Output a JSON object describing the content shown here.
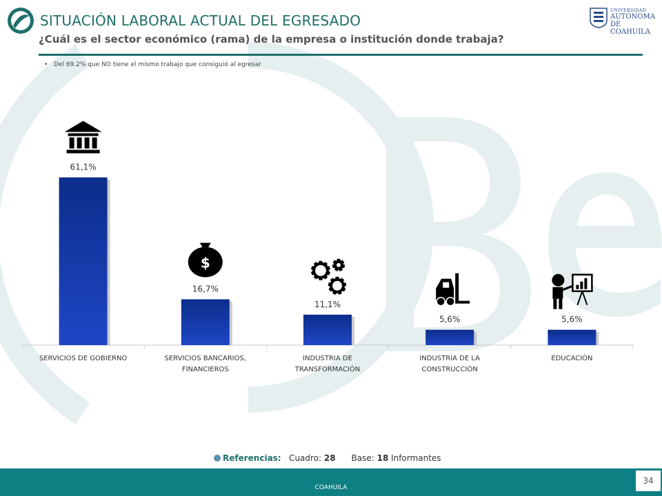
{
  "header": {
    "title": "SITUACIÓN LABORAL ACTUAL DEL EGRESADO",
    "subtitle": "¿Cuál es el sector económico (rama) de la empresa o institución donde trabaja?",
    "university": {
      "line1": "UNIVERSIDAD",
      "line2": "AUTÓNOMA",
      "line3": "DE COAHUILA"
    }
  },
  "note": {
    "bullet": "•",
    "text": "Del 69.2% que NO tiene el mismo trabajo que consiguió al egresar"
  },
  "chart_data": {
    "type": "bar",
    "categories": [
      "SERVICIOS DE GOBIERNO",
      "SERVICIOS BANCARIOS, FINANCIEROS",
      "INDUSTRIA DE TRANSFORMACIÓN",
      "INDUSTRIA DE LA CONSTRUCCIÓN",
      "EDUCACIÓN"
    ],
    "category_lines": [
      [
        "SERVICIOS DE GOBIERNO"
      ],
      [
        "SERVICIOS BANCARIOS,",
        "FINANCIEROS"
      ],
      [
        "INDUSTRIA DE",
        "TRANSFORMACIÓN"
      ],
      [
        "INDUSTRIA DE LA",
        "CONSTRUCCIÓN"
      ],
      [
        "EDUCACIÓN"
      ]
    ],
    "values": [
      61.1,
      16.7,
      11.1,
      5.6,
      5.6
    ],
    "data_labels": [
      "61,1%",
      "16,7%",
      "11,1%",
      "5,6%",
      "5,6%"
    ],
    "icons": [
      "bank-icon",
      "money-bag-icon",
      "gears-icon",
      "forklift-icon",
      "teacher-icon"
    ],
    "title": "",
    "xlabel": "",
    "ylabel": "",
    "ylim": [
      0,
      100
    ],
    "grid": false,
    "legend": "none",
    "bar_color": "#0b2d8a",
    "bar_color_light": "#1f46c6"
  },
  "references": {
    "label": "Referencias:",
    "cuadro_label": "Cuadro:",
    "cuadro_value": "28",
    "base_label": "Base:",
    "base_value": "18",
    "base_unit": "Informantes"
  },
  "footer": {
    "label": "COAHUILA",
    "page": "34"
  },
  "colors": {
    "accent": "#1f6f6a",
    "footer": "#0e7f83",
    "watermark": "#e6efef"
  }
}
